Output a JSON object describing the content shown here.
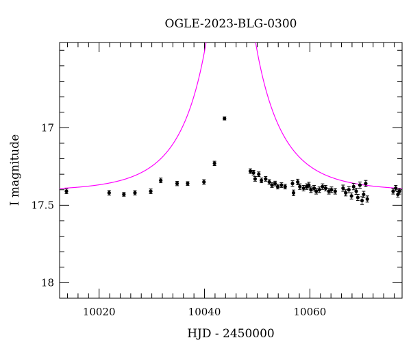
{
  "chart_data": {
    "type": "scatter",
    "title": "OGLE-2023-BLG-0300",
    "xlabel": "HJD - 2450000",
    "ylabel": "I magnitude",
    "xlim": [
      10012.5,
      10077.5
    ],
    "ylim": [
      18.1,
      16.45
    ],
    "y_inverted": true,
    "grid": false,
    "x_ticks": {
      "labeled": [
        10020,
        10040,
        10060
      ],
      "labels": [
        "10020",
        "10040",
        "10060"
      ],
      "minor_step": 2
    },
    "y_ticks": {
      "labeled": [
        17,
        17.5,
        18
      ],
      "labels": [
        "17",
        "17.5",
        "18"
      ],
      "minor_step": 0.1
    },
    "colors": {
      "model": "#ff00ff",
      "points": "#000000"
    },
    "model": {
      "name": "",
      "color": "#ff00ff",
      "t0": 10045.0,
      "tE": 11.0,
      "u0": 0.008,
      "I_base": 17.41,
      "blend": 0.95
    },
    "series": [
      {
        "name": "",
        "x": [
          10013.8,
          10021.9,
          10024.7,
          10026.8,
          10029.8,
          10031.7,
          10034.8,
          10036.8,
          10039.9,
          10041.9,
          10043.8,
          10048.7,
          10049.3,
          10049.6,
          10050.3,
          10050.8,
          10051.6,
          10052.3,
          10052.8,
          10053.4,
          10053.9,
          10054.6,
          10055.3,
          10056.7,
          10056.9,
          10057.7,
          10058.1,
          10058.8,
          10059.4,
          10059.8,
          10060.2,
          10060.8,
          10061.2,
          10061.8,
          10062.4,
          10063.0,
          10063.6,
          10064.1,
          10064.8,
          10066.3,
          10066.8,
          10067.4,
          10067.9,
          10068.3,
          10068.8,
          10069.1,
          10069.5,
          10069.9,
          10070.2,
          10070.6,
          10070.9,
          10075.8,
          10076.3,
          10076.7,
          10077.0
        ],
        "y": [
          17.41,
          17.42,
          17.43,
          17.42,
          17.41,
          17.34,
          17.36,
          17.36,
          17.35,
          17.23,
          16.94,
          17.28,
          17.29,
          17.33,
          17.3,
          17.34,
          17.33,
          17.35,
          17.37,
          17.36,
          17.38,
          17.37,
          17.38,
          17.36,
          17.42,
          17.35,
          17.38,
          17.39,
          17.38,
          17.37,
          17.4,
          17.39,
          17.41,
          17.4,
          17.38,
          17.39,
          17.41,
          17.4,
          17.41,
          17.39,
          17.42,
          17.4,
          17.44,
          17.38,
          17.41,
          17.45,
          17.37,
          17.47,
          17.43,
          17.36,
          17.46,
          17.41,
          17.39,
          17.43,
          17.41
        ],
        "err": [
          0.015,
          0.015,
          0.012,
          0.014,
          0.015,
          0.015,
          0.014,
          0.012,
          0.015,
          0.014,
          0.01,
          0.015,
          0.015,
          0.015,
          0.015,
          0.015,
          0.015,
          0.015,
          0.015,
          0.015,
          0.015,
          0.015,
          0.015,
          0.018,
          0.018,
          0.018,
          0.018,
          0.018,
          0.018,
          0.018,
          0.018,
          0.018,
          0.018,
          0.018,
          0.018,
          0.018,
          0.018,
          0.018,
          0.018,
          0.02,
          0.02,
          0.02,
          0.02,
          0.02,
          0.02,
          0.02,
          0.02,
          0.025,
          0.02,
          0.02,
          0.02,
          0.018,
          0.018,
          0.018,
          0.018
        ]
      }
    ]
  }
}
